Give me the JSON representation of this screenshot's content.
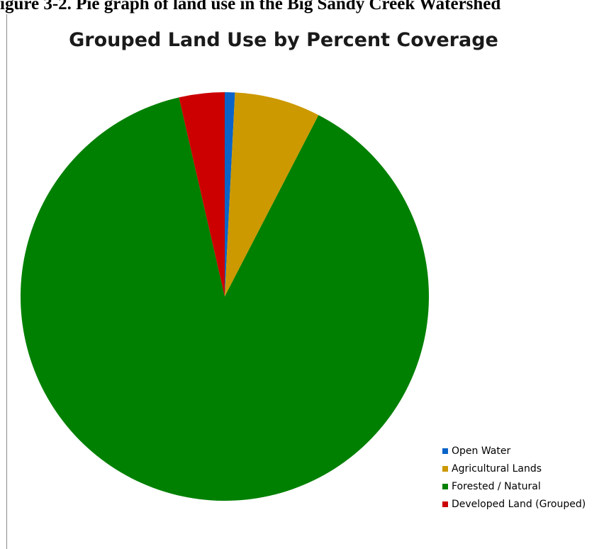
{
  "caption": "igure 3-2. Pie graph of land use in the Big Sandy Creek Watershed",
  "chart_data": {
    "type": "pie",
    "title": "Grouped Land Use by Percent Coverage",
    "legend_position": "bottom-right",
    "categories": [
      "Open Water",
      "Agricultural Lands",
      "Forested / Natural",
      "Developed Land (Grouped)"
    ],
    "values": [
      0.8,
      6.8,
      88.8,
      3.6
    ],
    "colors": [
      "#0a64c8",
      "#cc9900",
      "#008000",
      "#cc0000"
    ]
  }
}
